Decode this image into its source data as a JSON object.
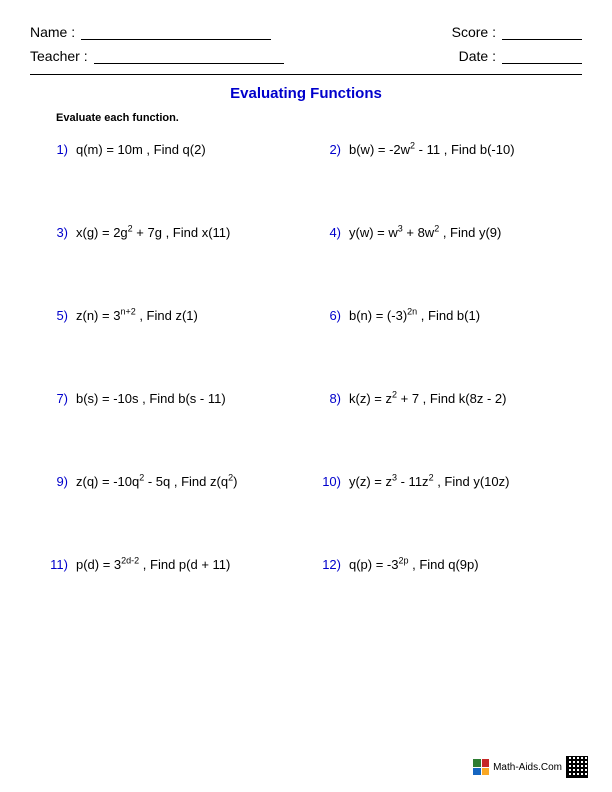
{
  "header": {
    "name_label": "Name :",
    "teacher_label": "Teacher :",
    "score_label": "Score :",
    "date_label": "Date :"
  },
  "title": "Evaluating Functions",
  "instruction": "Evaluate each function.",
  "problem_color": "#0000cc",
  "text_color": "#000000",
  "fontsize_body": 13,
  "fontsize_title": 15,
  "problems": [
    {
      "num": "1)",
      "expr": "q(m) = 10m , Find q(2)"
    },
    {
      "num": "2)",
      "expr": "b(w) = -2w<sup>2</sup> - 11 , Find b(-10)"
    },
    {
      "num": "3)",
      "expr": "x(g) = 2g<sup>2</sup> + 7g , Find x(11)"
    },
    {
      "num": "4)",
      "expr": "y(w) = w<sup>3</sup> + 8w<sup>2</sup> , Find y(9)"
    },
    {
      "num": "5)",
      "expr": "z(n) = 3<sup>n+2</sup> , Find z(1)"
    },
    {
      "num": "6)",
      "expr": "b(n) = (-3)<sup>2n</sup> , Find b(1)"
    },
    {
      "num": "7)",
      "expr": "b(s) = -10s , Find b(s - 11)"
    },
    {
      "num": "8)",
      "expr": "k(z) = z<sup>2</sup> + 7 , Find k(8z - 2)"
    },
    {
      "num": "9)",
      "expr": "z(q) = -10q<sup>2</sup> - 5q , Find z(q<sup>2</sup>)"
    },
    {
      "num": "10)",
      "expr": "y(z) = z<sup>3</sup> - 11z<sup>2</sup> , Find y(10z)"
    },
    {
      "num": "11)",
      "expr": "p(d) = 3<sup>2d-2</sup> , Find p(d + 11)"
    },
    {
      "num": "12)",
      "expr": "q(p) = -3<sup>2p</sup> , Find q(9p)"
    }
  ],
  "footer": {
    "site": "Math-Aids.Com"
  }
}
